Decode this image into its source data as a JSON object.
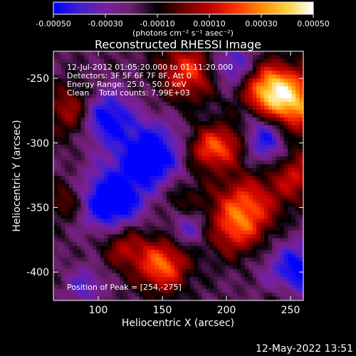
{
  "chart_data": {
    "type": "heatmap",
    "title": "Reconstructed RHESSI Image",
    "xlabel": "Heliocentric X (arcsec)",
    "ylabel": "Heliocentric Y (arcsec)",
    "xlim": [
      65,
      260
    ],
    "ylim": [
      -422,
      -229
    ],
    "x_ticks": [
      100,
      150,
      200,
      250
    ],
    "y_ticks": [
      -250,
      -300,
      -350,
      -400
    ],
    "grid": false,
    "colorbar": {
      "range": [
        -0.0005,
        0.0005
      ],
      "ticks": [
        "-0.00050",
        "-0.00030",
        "-0.00010",
        "0.00010",
        "0.00030",
        "0.00050"
      ],
      "unit_label": "(photons cm⁻² s⁻¹ asec⁻²)",
      "colormap": [
        "#0000ff",
        "#4020d0",
        "#7a1fa0",
        "#6a1f6a",
        "#000000",
        "#6a0000",
        "#c00000",
        "#ff3000",
        "#ff8c00",
        "#ffd040",
        "#ffffff"
      ]
    },
    "annotations": {
      "time_range": "12-Jul-2012 01:05:20.000 to 01:11:20.000",
      "detectors": "Detectors: 3F 5F 6F 7F 8F, Att 0",
      "energy_range": "Energy Range: 25.0 - 50.0 keV",
      "clean": "Clean",
      "total_counts": "Total counts: 7.99E+03",
      "peak_position": "Position of Peak = [254,-275]"
    },
    "peak": {
      "x": 254,
      "y": -275
    },
    "sources": [
      {
        "x": 250,
        "y": -270,
        "amp": 1.0,
        "w": 18
      },
      {
        "x": 232,
        "y": -258,
        "amp": 0.75,
        "w": 14
      },
      {
        "x": 170,
        "y": -245,
        "amp": 0.7,
        "w": 16
      },
      {
        "x": 255,
        "y": -325,
        "amp": 0.55,
        "w": 14
      },
      {
        "x": 185,
        "y": -305,
        "amp": 0.65,
        "w": 12
      },
      {
        "x": 205,
        "y": -300,
        "amp": 0.5,
        "w": 12
      },
      {
        "x": 80,
        "y": -275,
        "amp": 0.55,
        "w": 14
      },
      {
        "x": 215,
        "y": -350,
        "amp": 0.75,
        "w": 18
      },
      {
        "x": 205,
        "y": -370,
        "amp": 0.4,
        "w": 14
      },
      {
        "x": 150,
        "y": -395,
        "amp": 0.85,
        "w": 14
      },
      {
        "x": 120,
        "y": -380,
        "amp": 0.5,
        "w": 12
      },
      {
        "x": 75,
        "y": -345,
        "amp": 0.4,
        "w": 10
      },
      {
        "x": 165,
        "y": -345,
        "amp": 0.3,
        "w": 12
      },
      {
        "x": 245,
        "y": -420,
        "amp": 0.3,
        "w": 10
      },
      {
        "x": 110,
        "y": -345,
        "amp": -0.9,
        "w": 16
      },
      {
        "x": 140,
        "y": -310,
        "amp": -0.85,
        "w": 18
      },
      {
        "x": 105,
        "y": -280,
        "amp": -0.75,
        "w": 14
      },
      {
        "x": 230,
        "y": -295,
        "amp": -0.8,
        "w": 14
      },
      {
        "x": 255,
        "y": -400,
        "amp": -0.7,
        "w": 16
      },
      {
        "x": 170,
        "y": -365,
        "amp": -0.45,
        "w": 10
      },
      {
        "x": 205,
        "y": -240,
        "amp": -0.55,
        "w": 12
      },
      {
        "x": 90,
        "y": -410,
        "amp": -0.4,
        "w": 10
      }
    ]
  },
  "footer": {
    "timestamp": "12-May-2022 13:51"
  }
}
